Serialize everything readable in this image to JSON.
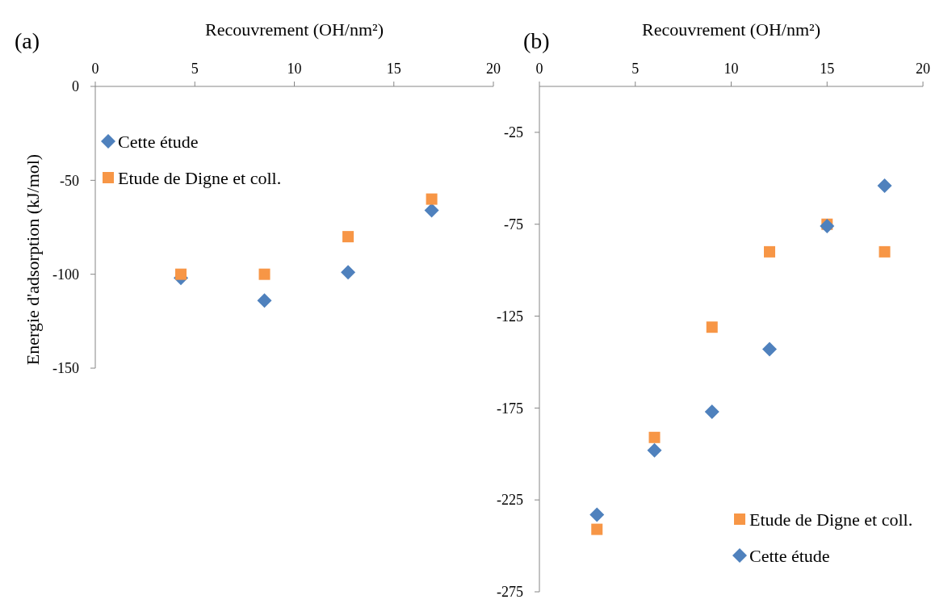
{
  "chart_data": [
    {
      "type": "scatter",
      "title": "(a)",
      "xlabel": "Recouvrement (OH/nm²)",
      "ylabel": "Energie d'adsorption (kJ/mol)",
      "xlim": [
        0,
        20
      ],
      "xticks": [
        0,
        5,
        10,
        15,
        20
      ],
      "ylim": [
        -150,
        0
      ],
      "yticks": [
        0,
        -50,
        -100,
        -150
      ],
      "legend": "top left",
      "series": [
        {
          "name": "Cette étude",
          "color": "#4f81bd",
          "marker": "diamond",
          "x": [
            4.3,
            8.5,
            12.7,
            16.9
          ],
          "values": [
            -102,
            -114,
            -99,
            -66
          ]
        },
        {
          "name": "Etude de Digne et coll.",
          "color": "#f79646",
          "marker": "square",
          "x": [
            4.3,
            8.5,
            12.7,
            16.9
          ],
          "values": [
            -100,
            -100,
            -80,
            -60
          ]
        }
      ]
    },
    {
      "type": "scatter",
      "title": "(b)",
      "xlabel": "Recouvrement (OH/nm²)",
      "xlim": [
        0,
        20
      ],
      "xticks": [
        0,
        5,
        10,
        15,
        20
      ],
      "ylim": [
        -275,
        0
      ],
      "yticks": [
        -25,
        -75,
        -125,
        -175,
        -225,
        -275
      ],
      "legend": "bottom right",
      "series": [
        {
          "name": "Etude de Digne et coll.",
          "color": "#f79646",
          "marker": "square",
          "x": [
            3,
            6,
            9,
            12,
            15,
            18
          ],
          "values": [
            -241,
            -191,
            -131,
            -90,
            -75,
            -90
          ]
        },
        {
          "name": "Cette étude",
          "color": "#4f81bd",
          "marker": "diamond",
          "x": [
            3,
            6,
            9,
            12,
            15,
            18
          ],
          "values": [
            -233,
            -198,
            -177,
            -143,
            -76,
            -54
          ]
        }
      ]
    }
  ]
}
